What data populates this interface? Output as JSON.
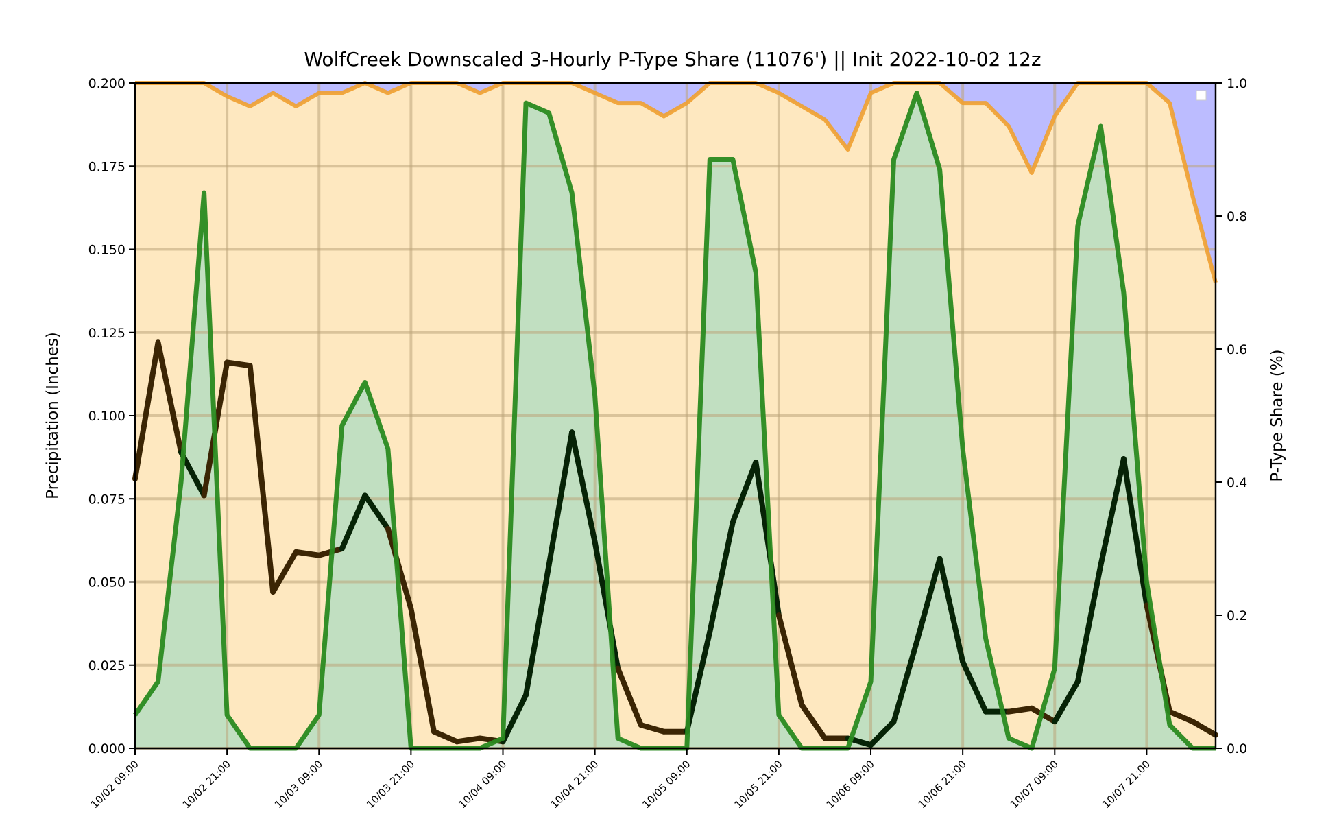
{
  "chart_data": {
    "type": "line",
    "title": "WolfCreek Downscaled 3-Hourly P-Type Share (11076') || Init 2022-10-02 12z",
    "ylabel_left": "Precipitation (Inches)",
    "ylabel_right": "P-Type Share (%)",
    "ylim_left": [
      0,
      0.2
    ],
    "ylim_right": [
      0,
      1.0
    ],
    "left_ticks": [
      "0.000",
      "0.025",
      "0.050",
      "0.075",
      "0.100",
      "0.125",
      "0.150",
      "0.175",
      "0.200"
    ],
    "right_ticks": [
      "0.0",
      "0.2",
      "0.4",
      "0.6",
      "0.8",
      "1.0"
    ],
    "x_tick_labels": [
      "10/02 09:00",
      "10/02 21:00",
      "10/03 09:00",
      "10/03 21:00",
      "10/04 09:00",
      "10/04 21:00",
      "10/05 09:00",
      "10/05 21:00",
      "10/06 09:00",
      "10/06 21:00",
      "10/07 09:00",
      "10/07 21:00"
    ],
    "x_tick_index": [
      0,
      4,
      8,
      12,
      16,
      20,
      24,
      28,
      32,
      36,
      40,
      44
    ],
    "grid": true,
    "legend": "top-right",
    "colors": {
      "snow_fill": "#bcbcff",
      "rain_fill": "#fee8c0",
      "share_line": "#f0a030",
      "green_line": "#2a8a20",
      "green_fill": "#c1dfc1",
      "precip_dark": "#3b2504",
      "precip_black": "#062306",
      "grid": "#bba47a"
    },
    "series": [
      {
        "key": "ptype_share",
        "axis": "right",
        "values": [
          1.0,
          1.0,
          1.0,
          1.0,
          0.98,
          0.965,
          0.985,
          0.965,
          0.985,
          0.985,
          1.0,
          0.985,
          1.0,
          1.0,
          1.0,
          0.985,
          1.0,
          1.0,
          1.0,
          1.0,
          0.985,
          0.97,
          0.97,
          0.95,
          0.97,
          1.0,
          1.0,
          1.0,
          0.985,
          0.965,
          0.945,
          0.9,
          0.985,
          1.0,
          1.0,
          1.0,
          0.97,
          0.97,
          0.935,
          0.865,
          0.95,
          1.0,
          1.0,
          1.0,
          1.0,
          0.97,
          0.83,
          0.7
        ]
      },
      {
        "key": "green_series",
        "axis": "left",
        "values": [
          0.01,
          0.02,
          0.08,
          0.167,
          0.01,
          0.0,
          0.0,
          0.0,
          0.01,
          0.097,
          0.11,
          0.09,
          0.0,
          0.0,
          0.0,
          0.0,
          0.003,
          0.194,
          0.191,
          0.167,
          0.106,
          0.003,
          0.0,
          0.0,
          0.0,
          0.177,
          0.177,
          0.143,
          0.01,
          0.0,
          0.0,
          0.0,
          0.02,
          0.177,
          0.197,
          0.174,
          0.09,
          0.033,
          0.003,
          0.0,
          0.024,
          0.157,
          0.187,
          0.137,
          0.05,
          0.007,
          0.0,
          0.0
        ]
      },
      {
        "key": "precip_total",
        "axis": "left",
        "values": [
          0.081,
          0.122,
          0.089,
          0.076,
          0.116,
          0.115,
          0.047,
          0.059,
          0.058,
          0.06,
          0.076,
          0.066,
          0.042,
          0.005,
          0.002,
          0.003,
          0.002,
          0.016,
          0.055,
          0.095,
          0.062,
          0.024,
          0.007,
          0.005,
          0.005,
          0.035,
          0.068,
          0.086,
          0.04,
          0.013,
          0.003,
          0.003,
          0.001,
          0.008,
          0.032,
          0.057,
          0.026,
          0.011,
          0.011,
          0.012,
          0.008,
          0.02,
          0.055,
          0.087,
          0.043,
          0.011,
          0.008,
          0.004
        ]
      }
    ]
  }
}
